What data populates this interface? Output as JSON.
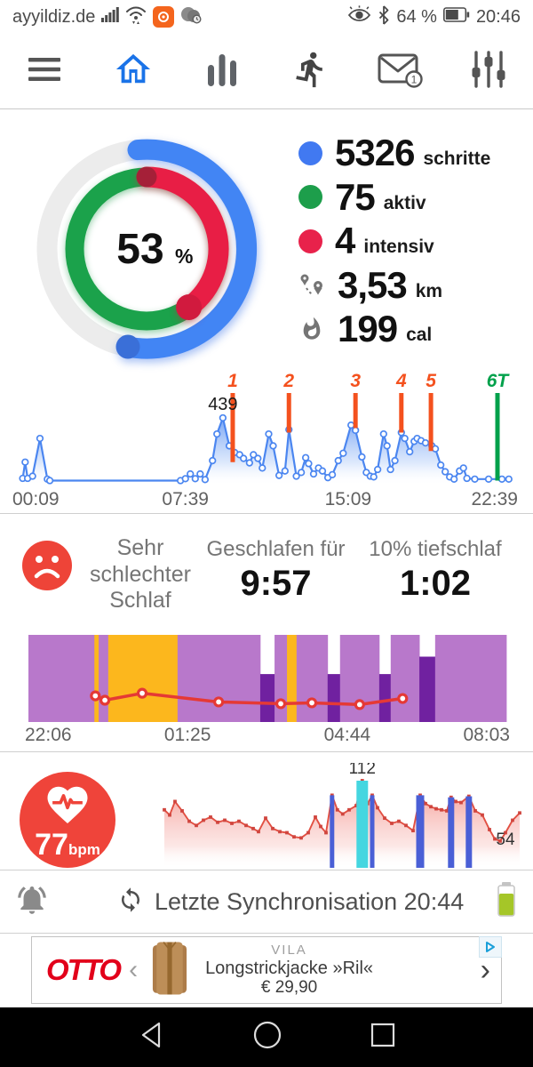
{
  "status_bar": {
    "carrier": "ayyildiz.de",
    "battery_pct": "64 %",
    "time": "20:46"
  },
  "tab_bar": {
    "mail_badge": "1"
  },
  "activity": {
    "center": {
      "value": "53",
      "unit": "%"
    },
    "stats": [
      {
        "color": "#4179f1",
        "value": "5326",
        "label": "schritte"
      },
      {
        "color": "#1d9e4b",
        "value": "75",
        "label": "aktiv"
      },
      {
        "color": "#e8224b",
        "value": "4",
        "label": "intensiv"
      },
      {
        "icon": "route-icon",
        "value": "3,53",
        "label": "km"
      },
      {
        "icon": "flame-icon",
        "value": "199",
        "label": "cal"
      }
    ]
  },
  "sleep": {
    "quality": "Sehr schlechter Schlaf",
    "duration_label": "Geschlafen für",
    "duration_value": "9:57",
    "deep_label": "10% tiefschlaf",
    "deep_value": "1:02"
  },
  "heart": {
    "value": "77",
    "unit": "bpm"
  },
  "sync": {
    "text": "Letzte Synchronisation 20:44"
  },
  "ad": {
    "brand": "OTTO",
    "label_brand": "VILA",
    "product": "Longstrickjacke »Ril«",
    "price": "€ 29,90"
  },
  "chart_data": [
    {
      "type": "area",
      "name": "steps-per-hour",
      "line_color": "#4b86f0",
      "ylim": [
        0,
        480
      ],
      "x_ticks": [
        {
          "label": "00:09",
          "p": 0,
          "anchor": "start"
        },
        {
          "label": "07:39",
          "p": 34,
          "anchor": "middle"
        },
        {
          "label": "15:09",
          "p": 67,
          "anchor": "middle"
        },
        {
          "label": "22:39",
          "p": 100,
          "anchor": "end"
        }
      ],
      "annotation": {
        "text": "439",
        "x": 41.6,
        "value": 439
      },
      "markers": [
        {
          "label": "1",
          "x": 43.6,
          "end": 140,
          "color": "#f4511e"
        },
        {
          "label": "2",
          "x": 55.0,
          "end": 340,
          "color": "#f4511e"
        },
        {
          "label": "3",
          "x": 68.5,
          "end": 370,
          "color": "#f4511e"
        },
        {
          "label": "4",
          "x": 77.8,
          "end": 340,
          "color": "#f4511e"
        },
        {
          "label": "5",
          "x": 83.8,
          "end": 215,
          "color": "#f4511e"
        },
        {
          "label": "6T",
          "x": 97.3,
          "end": 15,
          "color": "#00a14b"
        }
      ],
      "series": [
        [
          1,
          30
        ],
        [
          1.5,
          140
        ],
        [
          2,
          30
        ],
        [
          3,
          45
        ],
        [
          4.5,
          300
        ],
        [
          6,
          25
        ],
        [
          6.5,
          15
        ],
        [
          33,
          15
        ],
        [
          34,
          28
        ],
        [
          35,
          60
        ],
        [
          36,
          28
        ],
        [
          37,
          60
        ],
        [
          38,
          22
        ],
        [
          39.5,
          150
        ],
        [
          40.4,
          330
        ],
        [
          41.6,
          439
        ],
        [
          42.9,
          250
        ],
        [
          44,
          205
        ],
        [
          45,
          190
        ],
        [
          45.8,
          165
        ],
        [
          47,
          135
        ],
        [
          47.8,
          190
        ],
        [
          48.7,
          165
        ],
        [
          49.6,
          100
        ],
        [
          50.9,
          330
        ],
        [
          51.8,
          250
        ],
        [
          53,
          50
        ],
        [
          54.2,
          80
        ],
        [
          55,
          360
        ],
        [
          56.5,
          45
        ],
        [
          57.5,
          70
        ],
        [
          58.4,
          170
        ],
        [
          59,
          130
        ],
        [
          60,
          60
        ],
        [
          61,
          100
        ],
        [
          61.8,
          80
        ],
        [
          62.9,
          35
        ],
        [
          63.8,
          55
        ],
        [
          65,
          150
        ],
        [
          66,
          200
        ],
        [
          67.6,
          390
        ],
        [
          68.5,
          355
        ],
        [
          69.8,
          175
        ],
        [
          70.7,
          70
        ],
        [
          71.5,
          45
        ],
        [
          72.2,
          40
        ],
        [
          73,
          90
        ],
        [
          74.2,
          330
        ],
        [
          74.9,
          250
        ],
        [
          75.6,
          90
        ],
        [
          76.5,
          150
        ],
        [
          77.8,
          340
        ],
        [
          78.5,
          300
        ],
        [
          79.5,
          210
        ],
        [
          80.4,
          280
        ],
        [
          81,
          300
        ],
        [
          81.8,
          285
        ],
        [
          82.7,
          270
        ],
        [
          84,
          250
        ],
        [
          84.7,
          230
        ],
        [
          85.8,
          120
        ],
        [
          86.7,
          75
        ],
        [
          87.6,
          40
        ],
        [
          88.5,
          25
        ],
        [
          89.6,
          80
        ],
        [
          90.4,
          100
        ],
        [
          91.1,
          30
        ],
        [
          92.7,
          25
        ],
        [
          95.5,
          25
        ],
        [
          98.2,
          25
        ],
        [
          99.6,
          25
        ]
      ]
    },
    {
      "type": "timeline",
      "name": "sleep-phases",
      "colors": {
        "light": "#b878cb",
        "deep": "#7021a0",
        "wake": "#fcb71d"
      },
      "line_color": "#e53935",
      "x_ticks": [
        {
          "label": "22:06",
          "p": 0,
          "anchor": "start"
        },
        {
          "label": "01:25",
          "p": 33.3,
          "anchor": "middle"
        },
        {
          "label": "04:44",
          "p": 66.7,
          "anchor": "middle"
        },
        {
          "label": "08:03",
          "p": 100,
          "anchor": "end"
        }
      ],
      "segments": [
        {
          "t": "light",
          "s": 0,
          "e": 13.8
        },
        {
          "t": "wake",
          "s": 13.8,
          "e": 14.7
        },
        {
          "t": "light",
          "s": 14.7,
          "e": 16.7
        },
        {
          "t": "wake",
          "s": 16.7,
          "e": 31.2
        },
        {
          "t": "light",
          "s": 31.2,
          "e": 48.5
        },
        {
          "t": "deep",
          "s": 48.5,
          "e": 51.5,
          "top": 45
        },
        {
          "t": "light",
          "s": 51.5,
          "e": 54.1
        },
        {
          "t": "wake",
          "s": 54.1,
          "e": 56.1
        },
        {
          "t": "light",
          "s": 56.1,
          "e": 62.6
        },
        {
          "t": "deep",
          "s": 62.6,
          "e": 65.2,
          "top": 45
        },
        {
          "t": "light",
          "s": 65.2,
          "e": 73.4
        },
        {
          "t": "deep",
          "s": 73.4,
          "e": 75.8,
          "top": 45
        },
        {
          "t": "light",
          "s": 75.8,
          "e": 81.8
        },
        {
          "t": "deep",
          "s": 81.8,
          "e": 85.1,
          "top": 25
        },
        {
          "t": "light",
          "s": 85.1,
          "e": 100
        }
      ],
      "line": [
        [
          14,
          70
        ],
        [
          16,
          75
        ],
        [
          23.8,
          67
        ],
        [
          39.8,
          77
        ],
        [
          52.8,
          79
        ],
        [
          59.3,
          78
        ],
        [
          69.3,
          80
        ],
        [
          78.3,
          73
        ]
      ]
    },
    {
      "type": "area",
      "name": "heart-rate",
      "line_color": "#e25043",
      "point_color": "#d0453e",
      "ylim": [
        40,
        120
      ],
      "labels": [
        {
          "text": "112",
          "x": 55.7,
          "v": 112,
          "dy": -8,
          "anchor": "middle"
        },
        {
          "text": "54",
          "x": 96,
          "v": 54,
          "dy": 4,
          "anchor": "middle"
        }
      ],
      "bars": [
        {
          "x": 47.2,
          "w": 5,
          "top": 98,
          "color": "#4a5fd6"
        },
        {
          "x": 55.7,
          "w": 13,
          "top": 112,
          "color": "#45d6e0"
        },
        {
          "x": 58.5,
          "w": 5,
          "top": 98,
          "color": "#4a5fd6"
        },
        {
          "x": 72,
          "w": 9,
          "top": 98,
          "color": "#4a5fd6"
        },
        {
          "x": 80.7,
          "w": 7,
          "top": 96,
          "color": "#4a5fd6"
        },
        {
          "x": 85.7,
          "w": 7,
          "top": 97,
          "color": "#4a5fd6"
        }
      ],
      "series": [
        [
          0,
          84
        ],
        [
          1.5,
          79
        ],
        [
          3,
          92
        ],
        [
          5,
          83
        ],
        [
          7,
          73
        ],
        [
          9,
          69
        ],
        [
          11,
          74
        ],
        [
          13,
          77
        ],
        [
          15,
          72
        ],
        [
          17,
          74
        ],
        [
          19,
          71
        ],
        [
          21,
          73
        ],
        [
          23,
          69
        ],
        [
          25,
          66
        ],
        [
          26.5,
          63
        ],
        [
          28.5,
          76
        ],
        [
          30.5,
          66
        ],
        [
          32.5,
          63
        ],
        [
          34.5,
          62
        ],
        [
          36.5,
          58
        ],
        [
          38.5,
          57
        ],
        [
          40.5,
          62
        ],
        [
          42.5,
          77
        ],
        [
          44,
          68
        ],
        [
          45.5,
          62
        ],
        [
          47.2,
          98
        ],
        [
          48.7,
          84
        ],
        [
          50.2,
          80
        ],
        [
          52,
          84
        ],
        [
          54,
          88
        ],
        [
          55.7,
          112
        ],
        [
          57.2,
          90
        ],
        [
          58.5,
          98
        ],
        [
          60,
          86
        ],
        [
          62,
          76
        ],
        [
          64,
          71
        ],
        [
          66,
          73
        ],
        [
          68,
          69
        ],
        [
          70,
          64
        ],
        [
          72,
          98
        ],
        [
          73.5,
          90
        ],
        [
          75,
          87
        ],
        [
          76.5,
          85
        ],
        [
          78,
          84
        ],
        [
          79.5,
          83
        ],
        [
          80.7,
          96
        ],
        [
          82,
          92
        ],
        [
          83.5,
          91
        ],
        [
          85.7,
          97
        ],
        [
          87.5,
          83
        ],
        [
          89.5,
          79
        ],
        [
          91.5,
          65
        ],
        [
          93,
          56
        ],
        [
          94.5,
          54
        ],
        [
          96,
          62
        ],
        [
          98,
          74
        ],
        [
          100,
          81
        ]
      ]
    }
  ]
}
